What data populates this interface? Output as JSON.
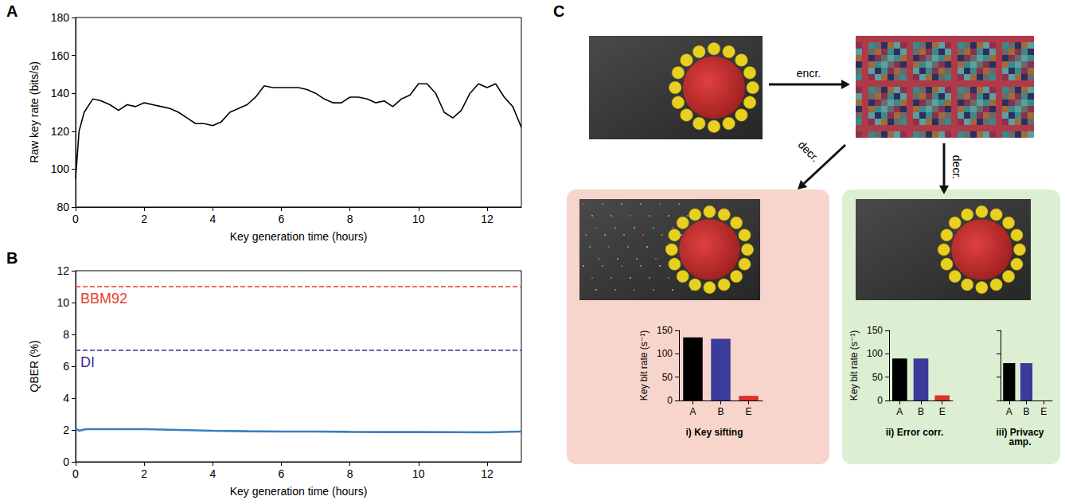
{
  "chart_data": [
    {
      "panel": "A",
      "type": "line",
      "x_label": "Key generation time (hours)",
      "y_label": "Raw key rate (bits/s)",
      "x": [
        0,
        0.1,
        0.25,
        0.5,
        0.75,
        1,
        1.25,
        1.5,
        1.75,
        2,
        2.25,
        2.5,
        2.75,
        3,
        3.25,
        3.5,
        3.75,
        4,
        4.25,
        4.5,
        4.75,
        5,
        5.25,
        5.5,
        5.75,
        6,
        6.25,
        6.5,
        6.75,
        7,
        7.25,
        7.5,
        7.75,
        8,
        8.25,
        8.5,
        8.75,
        9,
        9.25,
        9.5,
        9.75,
        10,
        10.25,
        10.5,
        10.75,
        11,
        11.25,
        11.5,
        11.75,
        12,
        12.25,
        12.5,
        12.75,
        13
      ],
      "series": [
        {
          "color": "#000000",
          "values": [
            95,
            120,
            130,
            137,
            136,
            134,
            131,
            134,
            133,
            135,
            134,
            133,
            132,
            130,
            127,
            124,
            124,
            123,
            125,
            130,
            132,
            134,
            138,
            144,
            143,
            143,
            143,
            143,
            142,
            140,
            137,
            135,
            135,
            138,
            138,
            137,
            135,
            136,
            133,
            137,
            139,
            145,
            145,
            140,
            130,
            127,
            131,
            140,
            145,
            143,
            145,
            138,
            133,
            122
          ]
        }
      ],
      "xlim": [
        0,
        13
      ],
      "xticks": [
        0,
        2,
        4,
        6,
        8,
        10,
        12
      ],
      "ylim": [
        80,
        180
      ],
      "yticks": [
        80,
        100,
        120,
        140,
        160,
        180
      ],
      "grid": false
    },
    {
      "panel": "B",
      "type": "line",
      "x_label": "Key generation time (hours)",
      "y_label": "QBER (%)",
      "x": [
        0,
        0.1,
        0.3,
        0.6,
        1,
        2,
        3,
        4,
        5,
        6,
        7,
        8,
        9,
        10,
        11,
        12,
        13
      ],
      "series": [
        {
          "color": "#3a7ec0",
          "values": [
            2.1,
            1.95,
            2.05,
            2.05,
            2.05,
            2.05,
            2.0,
            1.95,
            1.92,
            1.9,
            1.9,
            1.88,
            1.87,
            1.87,
            1.86,
            1.85,
            1.9
          ]
        }
      ],
      "reference_lines": [
        {
          "label": "BBM92",
          "value": 11,
          "color": "#e8402c",
          "line_style": "dashed"
        },
        {
          "label": "DI",
          "value": 7,
          "color": "#3b2f8f",
          "line_style": "dashed"
        }
      ],
      "xlim": [
        0,
        13
      ],
      "xticks": [
        0,
        2,
        4,
        6,
        8,
        10,
        12
      ],
      "ylim": [
        0,
        12
      ],
      "yticks": [
        0,
        2,
        4,
        6,
        8,
        10,
        12
      ],
      "grid": false
    },
    {
      "type": "bar",
      "title": "i) Key sifting",
      "y_label": "Key bit rate (s⁻¹)",
      "categories": [
        "A",
        "B",
        "E"
      ],
      "values": [
        135,
        132,
        10
      ],
      "colors": [
        "#000000",
        "#3b3b9a",
        "#e0302a"
      ],
      "ylim": [
        0,
        150
      ],
      "yticks": [
        0,
        50,
        100,
        150
      ],
      "grid": false
    },
    {
      "type": "bar",
      "title": "ii) Error corr.",
      "y_label": "Key bit rate (s⁻¹)",
      "categories": [
        "A",
        "B",
        "E"
      ],
      "values": [
        90,
        90,
        11
      ],
      "colors": [
        "#000000",
        "#3b3b9a",
        "#e0302a"
      ],
      "ylim": [
        0,
        150
      ],
      "yticks": [
        0,
        50,
        100,
        150
      ],
      "grid": false
    },
    {
      "type": "bar",
      "title": "iii) Privacy amp.",
      "categories": [
        "A",
        "B",
        "E"
      ],
      "values": [
        80,
        80,
        0
      ],
      "colors": [
        "#000000",
        "#3b3b9a",
        "#e0302a"
      ],
      "ylim": [
        0,
        150
      ],
      "yticks": [
        0,
        50,
        100,
        150
      ],
      "grid": false,
      "tick_labels": "x"
    }
  ],
  "diagram": {
    "panel": "C",
    "arrows": {
      "encrypt": "encr.",
      "decrypt_left": "decr.",
      "decrypt_down": "decr."
    }
  }
}
